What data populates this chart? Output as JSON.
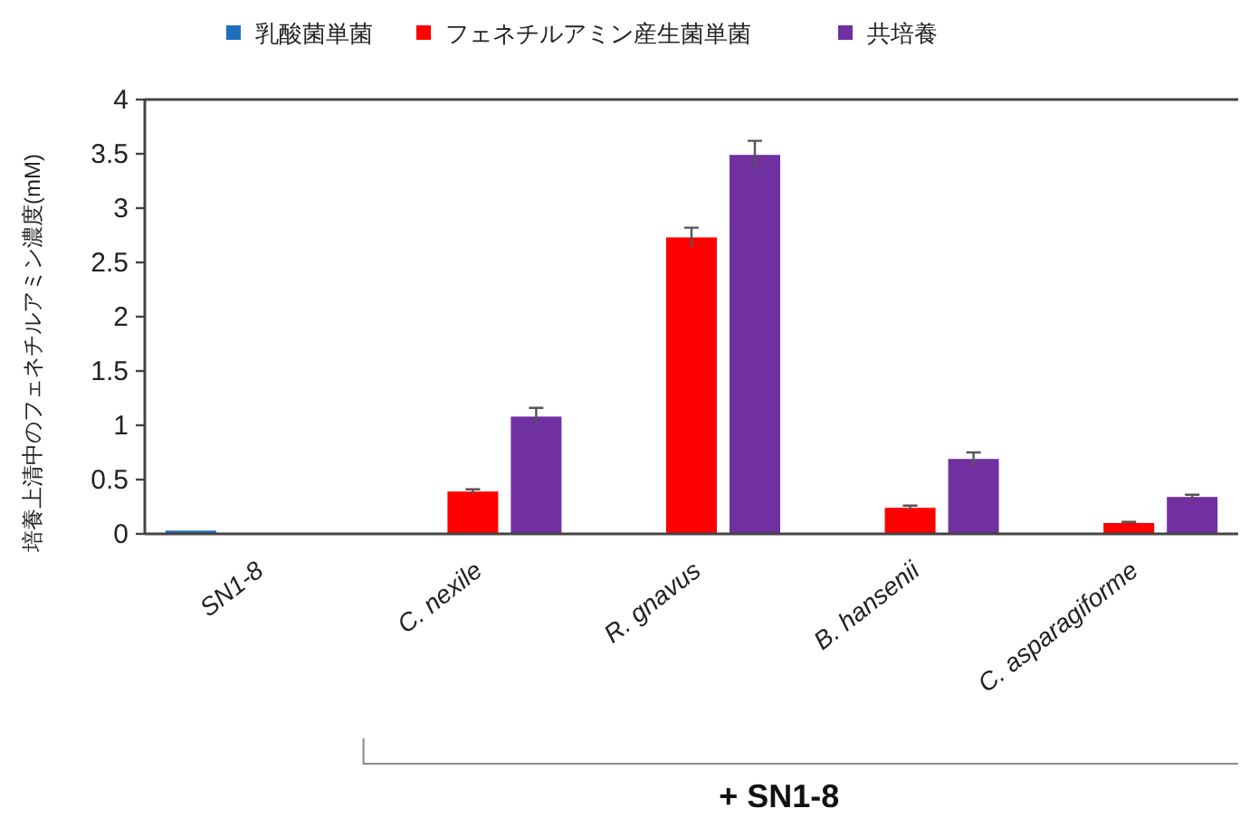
{
  "chart_data": {
    "type": "bar",
    "ylabel": "培養上清中のフェネチルアミン濃度(mM)",
    "categories": [
      "SN1-8",
      "C. nexile",
      "R. gnavus",
      "B. hansenii",
      "C. asparagiforme"
    ],
    "series": [
      {
        "name": "乳酸菌単菌",
        "color": "#1f6fbf",
        "values": [
          0.03,
          null,
          null,
          null,
          null
        ]
      },
      {
        "name": "フェネチルアミン産生菌単菌",
        "color": "#ff0000",
        "values": [
          null,
          0.39,
          2.73,
          0.24,
          0.1
        ],
        "errors": [
          null,
          0.02,
          0.09,
          0.02,
          0.01
        ]
      },
      {
        "name": "共培養",
        "color": "#7030a0",
        "values": [
          null,
          1.08,
          3.49,
          0.69,
          0.34
        ],
        "errors": [
          null,
          0.08,
          0.13,
          0.06,
          0.02
        ]
      }
    ],
    "ylim": [
      0,
      4
    ],
    "yticks": [
      0,
      0.5,
      1,
      1.5,
      2,
      2.5,
      3,
      3.5,
      4
    ],
    "grid": false,
    "legend": "top",
    "annotations": [
      "+ SN1-8"
    ]
  }
}
